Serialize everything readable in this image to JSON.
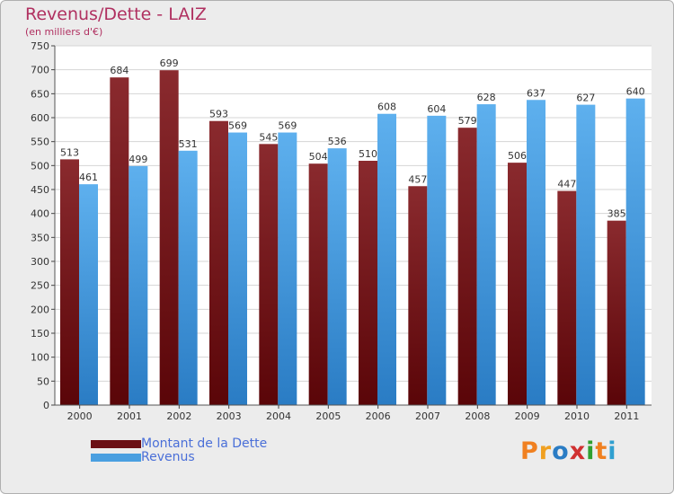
{
  "title": "Revenus/Dette - LAIZ",
  "subtitle": "(en milliers d'€)",
  "colors": {
    "background": "#ececec",
    "plot_background": "#ffffff",
    "dette": "#7a1f24",
    "revenus": "#4a9fe0",
    "title": "#b03060",
    "legend_text": "#4a6fd8"
  },
  "legend": [
    {
      "label": "Montant de la Dette",
      "color": "#6b0f14"
    },
    {
      "label": "Revenus",
      "color": "#4a9fe0"
    }
  ],
  "logo": {
    "text": "Proxiti"
  },
  "chart_data": {
    "type": "bar",
    "categories": [
      "2000",
      "2001",
      "2002",
      "2003",
      "2004",
      "2005",
      "2006",
      "2007",
      "2008",
      "2009",
      "2010",
      "2011"
    ],
    "series": [
      {
        "name": "Montant de la Dette",
        "values": [
          513,
          684,
          699,
          593,
          545,
          504,
          510,
          457,
          579,
          506,
          447,
          385
        ]
      },
      {
        "name": "Revenus",
        "values": [
          461,
          499,
          531,
          569,
          569,
          536,
          608,
          604,
          628,
          637,
          627,
          640
        ]
      }
    ],
    "ylim": [
      0,
      750
    ],
    "yticks": [
      0,
      50,
      100,
      150,
      200,
      250,
      300,
      350,
      400,
      450,
      500,
      550,
      600,
      650,
      700,
      750
    ],
    "grid": true,
    "legend_position": "bottom-left"
  }
}
